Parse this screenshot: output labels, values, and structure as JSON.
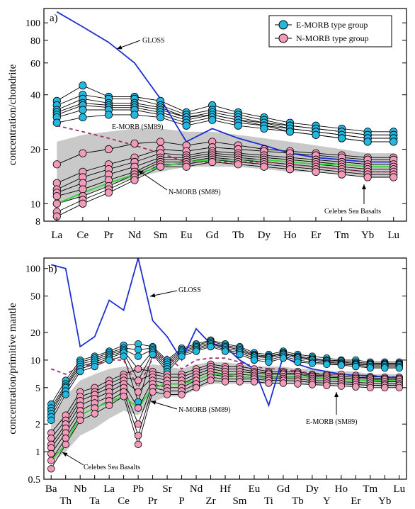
{
  "chart_data": [
    {
      "type": "line",
      "panel_label": "a)",
      "ylabel": "concentration/chondrite",
      "log_scale": true,
      "ylim": [
        8,
        120
      ],
      "yticks": [
        8,
        10,
        20,
        40,
        60,
        80,
        100
      ],
      "categories": [
        "La",
        "Ce",
        "Pr",
        "Nd",
        "Sm",
        "Eu",
        "Gd",
        "Tb",
        "Dy",
        "Ho",
        "Er",
        "Tm",
        "Yb",
        "Lu"
      ],
      "legend": {
        "position": "top-right",
        "entries": [
          {
            "label": "E-MORB type group",
            "color": "#22b8e0"
          },
          {
            "label": "N-MORB type group",
            "color": "#f29ab9"
          }
        ]
      },
      "annotations": [
        "GLOSS",
        "E-MORB (SM89)",
        "N-MORB (SM89)",
        "Celebes Sea Basalts"
      ],
      "gloss": [
        115,
        95,
        78,
        60,
        38,
        22,
        26,
        23,
        21,
        19,
        18,
        17.5,
        17,
        17
      ],
      "emorb_ref": [
        27,
        25,
        23,
        21,
        19,
        17,
        17,
        17,
        17,
        16.5,
        16,
        15.5,
        15,
        15
      ],
      "nmorb_ref": [
        10,
        11.5,
        13,
        14.5,
        16,
        17,
        17.5,
        17.5,
        17.5,
        17,
        16.5,
        16.5,
        16,
        16
      ],
      "celebes_band": {
        "upper": [
          22,
          24,
          25,
          26,
          26,
          25,
          25,
          24,
          23,
          22,
          21,
          20,
          19,
          19
        ],
        "lower": [
          10,
          11,
          12.5,
          14,
          15,
          16,
          16,
          16,
          15.5,
          15,
          15,
          14.5,
          14,
          14
        ]
      },
      "emorb_samples": [
        [
          37,
          45,
          39,
          39,
          37,
          32,
          35,
          32,
          30,
          28,
          27,
          26,
          25,
          25
        ],
        [
          35,
          40,
          38,
          38,
          35,
          31,
          33,
          31,
          29,
          27,
          26,
          25,
          24,
          24
        ],
        [
          33,
          38,
          36,
          36,
          34,
          30,
          32,
          30,
          28,
          27,
          26,
          25,
          24,
          24
        ],
        [
          32,
          36,
          35,
          35,
          33,
          30,
          31,
          29,
          28,
          26,
          25,
          24,
          23,
          23
        ],
        [
          31,
          35,
          34,
          34,
          32,
          29,
          31,
          29,
          27,
          26,
          25,
          24,
          23,
          23
        ],
        [
          30,
          33,
          33,
          33,
          31,
          28,
          30,
          28,
          27,
          25,
          24,
          23,
          22,
          22
        ],
        [
          28,
          30,
          31,
          31,
          30,
          27,
          29,
          27,
          26,
          25,
          24,
          23,
          22,
          22
        ]
      ],
      "nmorb_samples": [
        [
          16.5,
          19,
          20,
          21.5,
          22,
          21,
          22,
          21,
          20,
          19.5,
          19,
          18.5,
          18,
          18
        ],
        [
          13,
          15,
          16.5,
          18,
          20,
          19.5,
          20.5,
          20,
          19.5,
          19,
          18.5,
          18,
          17.5,
          17.5
        ],
        [
          12,
          14,
          15.5,
          17,
          19,
          18.5,
          19.5,
          19,
          18.5,
          18,
          17.5,
          17,
          16.5,
          16.5
        ],
        [
          11.5,
          13,
          14.5,
          16,
          18,
          18,
          19,
          18.5,
          18,
          17.5,
          17,
          16.5,
          16,
          16
        ],
        [
          11,
          12,
          13.5,
          15,
          17.5,
          17.5,
          18.5,
          18,
          17.5,
          17,
          16.5,
          16,
          15.5,
          15.5
        ],
        [
          10,
          11,
          12.5,
          14.5,
          17,
          17,
          18,
          17.5,
          17,
          16.5,
          16,
          15.5,
          15,
          15
        ],
        [
          9,
          10.5,
          12,
          14,
          16.5,
          16.5,
          17.5,
          17,
          16.5,
          16,
          15.5,
          15,
          14.5,
          14.5
        ],
        [
          8.5,
          10,
          11.5,
          13.5,
          16,
          16,
          17,
          16.5,
          16,
          15.5,
          15,
          14.5,
          14,
          14
        ]
      ]
    },
    {
      "type": "line",
      "panel_label": "b)",
      "ylabel": "concentration/primitive mantle",
      "log_scale": true,
      "ylim": [
        0.5,
        130
      ],
      "yticks": [
        0.5,
        1,
        2,
        5,
        10,
        20,
        50,
        100
      ],
      "categories_top": [
        "Ba",
        "Nb",
        "La",
        "Pb",
        "Sr",
        "Nd",
        "Hf",
        "Eu",
        "Gd",
        "Dy",
        "Ho",
        "Tm",
        "Lu"
      ],
      "categories_bottom": [
        "Th",
        "Ta",
        "Ce",
        "Pr",
        "P",
        "Zr",
        "Sm",
        "Ti",
        "Tb",
        "Y",
        "Er",
        "Yb"
      ],
      "categories": [
        "Ba",
        "Th",
        "Nb",
        "Ta",
        "La",
        "Ce",
        "Pb",
        "Pr",
        "Sr",
        "P",
        "Nd",
        "Zr",
        "Hf",
        "Sm",
        "Eu",
        "Ti",
        "Gd",
        "Tb",
        "Dy",
        "Y",
        "Ho",
        "Er",
        "Tm",
        "Yb",
        "Lu"
      ],
      "annotations": [
        "GLOSS",
        "N-MORB (SM89)",
        "E-MORB (SM89)",
        "Celebes Sea Basalts"
      ],
      "gloss": [
        110,
        100,
        14,
        18,
        45,
        35,
        130,
        27,
        18,
        10,
        22,
        15,
        14,
        10,
        8,
        3.2,
        11,
        9,
        8,
        7.5,
        7,
        6.8,
        6.8,
        6.5,
        6.5
      ],
      "emorb_ref": [
        8,
        7,
        8.5,
        9,
        10,
        10,
        5,
        10.5,
        11,
        8,
        10,
        10.5,
        10.5,
        9.5,
        8.5,
        8,
        8,
        7.5,
        7.2,
        7,
        7,
        6.8,
        6.8,
        6.6,
        6.5
      ],
      "nmorb_ref": [
        0.8,
        1.2,
        2.5,
        3,
        3.5,
        4,
        3,
        5,
        5.5,
        5.5,
        6,
        7,
        7,
        6.5,
        6.5,
        6.5,
        6.5,
        6.5,
        6.5,
        6.2,
        6.2,
        6,
        6,
        6,
        6
      ],
      "celebes_band": {
        "upper": [
          2.2,
          4,
          6,
          7,
          8,
          8.5,
          8,
          9,
          8.5,
          8,
          9,
          9.5,
          9.5,
          9,
          8.5,
          8.5,
          8.5,
          8,
          8,
          7.5,
          7.5,
          7.5,
          7,
          7,
          7
        ],
        "lower": [
          0.75,
          1,
          1.5,
          1.8,
          2.3,
          2.8,
          2.5,
          3.5,
          4,
          4,
          4.8,
          5.5,
          5.5,
          5.5,
          5.5,
          5.5,
          5.5,
          5.5,
          5.5,
          5.3,
          5.3,
          5.2,
          5.2,
          5,
          5
        ]
      },
      "emorb_samples": [
        [
          3.3,
          6,
          10,
          11,
          12.5,
          14.5,
          15,
          14,
          10,
          13.5,
          15,
          16.5,
          15,
          14,
          12,
          11.5,
          12.5,
          11.5,
          11,
          10.5,
          10,
          10,
          9.5,
          9.5,
          9.5
        ],
        [
          3,
          5.5,
          9.5,
          10.5,
          12,
          13.5,
          13,
          13.5,
          9.5,
          13,
          14.5,
          16,
          14.5,
          13.5,
          11.5,
          11,
          12,
          11,
          10.5,
          10,
          9.8,
          9.5,
          9.2,
          9.2,
          9.2
        ],
        [
          2.8,
          5.2,
          9,
          10,
          11.5,
          13,
          11,
          13,
          9,
          12.5,
          14,
          15.5,
          14,
          13,
          11.2,
          10.8,
          11.8,
          10.8,
          10.2,
          9.8,
          9.5,
          9.2,
          9,
          9,
          9
        ],
        [
          2.6,
          5,
          8.5,
          9.5,
          11,
          12.5,
          8,
          12.5,
          8.5,
          12,
          13.5,
          15,
          13.5,
          12.5,
          11,
          10.5,
          11.5,
          10.5,
          10,
          9.5,
          9.2,
          9,
          8.8,
          8.8,
          8.8
        ],
        [
          2.4,
          4.6,
          8,
          9,
          10.5,
          12,
          6,
          12,
          8,
          11.5,
          13,
          14.5,
          13,
          12,
          10.5,
          10,
          11,
          10,
          9.5,
          9.2,
          9,
          8.8,
          8.5,
          8.5,
          8.5
        ],
        [
          2.2,
          4.2,
          7.5,
          8.5,
          10,
          11,
          3.5,
          11.5,
          7.5,
          11,
          12.5,
          14,
          12.5,
          11.5,
          10,
          9.5,
          10.5,
          9.5,
          9.2,
          9,
          8.8,
          8.5,
          8.2,
          8.2,
          8.2
        ]
      ],
      "nmorb_samples": [
        [
          1.6,
          2.5,
          4.5,
          5,
          6,
          7,
          8,
          7.5,
          7,
          7,
          8,
          9,
          8.5,
          8.5,
          8,
          7.5,
          7.5,
          7.5,
          7,
          7,
          7,
          6.8,
          6.6,
          6.5,
          6.5
        ],
        [
          1.4,
          2.2,
          4,
          4.5,
          5.5,
          6.5,
          6,
          7,
          6.5,
          6.5,
          7.5,
          8.5,
          8,
          8,
          7.5,
          7.2,
          7.2,
          7.2,
          6.8,
          6.8,
          6.6,
          6.5,
          6.4,
          6.3,
          6.3
        ],
        [
          1.2,
          2,
          3.6,
          4.2,
          5,
          6,
          4.5,
          6.5,
          6,
          6,
          7,
          8,
          7.5,
          7.5,
          7.2,
          7,
          7,
          7,
          6.6,
          6.5,
          6.4,
          6.3,
          6.2,
          6.1,
          6.1
        ],
        [
          1.1,
          1.8,
          3.2,
          3.8,
          4.5,
          5.5,
          3,
          6,
          5.5,
          5.5,
          6.5,
          7.5,
          7,
          7,
          6.8,
          6.6,
          6.6,
          6.6,
          6.3,
          6.2,
          6.1,
          6,
          5.9,
          5.8,
          5.8
        ],
        [
          0.95,
          1.6,
          2.8,
          3.4,
          4,
          5,
          2,
          5.5,
          5,
          5,
          6,
          7,
          6.6,
          6.6,
          6.5,
          6.3,
          6.3,
          6.2,
          6,
          5.9,
          5.8,
          5.7,
          5.6,
          5.5,
          5.5
        ],
        [
          0.8,
          1.4,
          2.5,
          3,
          3.6,
          4.5,
          1.5,
          5,
          4.6,
          4.6,
          5.5,
          6.5,
          6.2,
          6.2,
          6.2,
          6,
          6,
          5.9,
          5.7,
          5.6,
          5.5,
          5.4,
          5.3,
          5.3,
          5.3
        ],
        [
          0.65,
          1.2,
          2.2,
          2.6,
          3.2,
          4,
          1.2,
          4.5,
          4.2,
          4.2,
          5,
          6,
          5.8,
          5.8,
          5.8,
          5.6,
          5.6,
          5.5,
          5.4,
          5.3,
          5.2,
          5.1,
          5,
          5,
          5
        ]
      ]
    }
  ]
}
